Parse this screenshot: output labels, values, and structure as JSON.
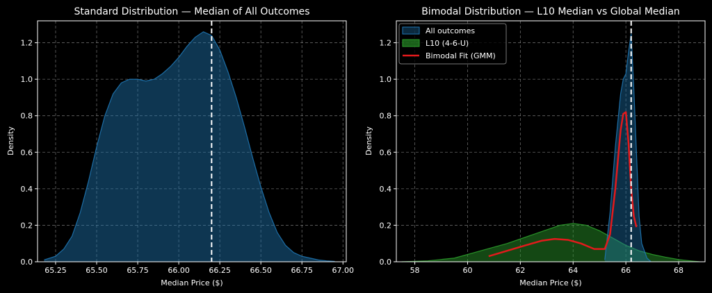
{
  "chart_data": [
    {
      "type": "area",
      "title": "Standard Distribution — Median of All Outcomes",
      "xlabel": "Median Price ($)",
      "ylabel": "Density",
      "xlim": [
        65.14,
        67.02
      ],
      "ylim": [
        0,
        1.32
      ],
      "xticks": [
        65.25,
        65.5,
        65.75,
        66.0,
        66.25,
        66.5,
        66.75,
        67.0
      ],
      "xtick_labels": [
        "65.25",
        "65.50",
        "65.75",
        "66.00",
        "66.25",
        "66.50",
        "66.75",
        "67.00"
      ],
      "yticks": [
        0,
        0.2,
        0.4,
        0.6,
        0.8,
        1.0,
        1.2
      ],
      "ytick_labels": [
        "0.0",
        "0.2",
        "0.4",
        "0.6",
        "0.8",
        "1.0",
        "1.2"
      ],
      "grid": true,
      "vline": {
        "x": 66.2,
        "style": "dashed",
        "color": "#ffffff"
      },
      "series": [
        {
          "name": "All outcomes",
          "color": "#1f77b4",
          "x": [
            65.18,
            65.25,
            65.3,
            65.35,
            65.4,
            65.45,
            65.5,
            65.55,
            65.6,
            65.65,
            65.7,
            65.75,
            65.8,
            65.85,
            65.9,
            65.95,
            66.0,
            66.05,
            66.1,
            66.15,
            66.2,
            66.25,
            66.3,
            66.35,
            66.4,
            66.45,
            66.5,
            66.55,
            66.6,
            66.65,
            66.7,
            66.75,
            66.8,
            66.85,
            66.9,
            66.95
          ],
          "y": [
            0.01,
            0.03,
            0.07,
            0.14,
            0.27,
            0.44,
            0.63,
            0.8,
            0.92,
            0.98,
            1.0,
            1.0,
            0.99,
            1.0,
            1.03,
            1.07,
            1.12,
            1.18,
            1.23,
            1.26,
            1.24,
            1.16,
            1.04,
            0.9,
            0.74,
            0.57,
            0.41,
            0.27,
            0.16,
            0.09,
            0.05,
            0.03,
            0.02,
            0.01,
            0.005,
            0.002
          ]
        }
      ]
    },
    {
      "type": "area",
      "title": "Bimodal Distribution — L10 Median vs Global Median",
      "xlabel": "Median Price ($)",
      "ylabel": "Density",
      "xlim": [
        57.3,
        69.0
      ],
      "ylim": [
        0,
        1.32
      ],
      "xticks": [
        58,
        60,
        62,
        64,
        66,
        68
      ],
      "xtick_labels": [
        "58",
        "60",
        "62",
        "64",
        "66",
        "68"
      ],
      "yticks": [
        0,
        0.2,
        0.4,
        0.6,
        0.8,
        1.0,
        1.2
      ],
      "ytick_labels": [
        "0.0",
        "0.2",
        "0.4",
        "0.6",
        "0.8",
        "1.0",
        "1.2"
      ],
      "grid": true,
      "legend_position": "top-left",
      "vline": {
        "x": 66.2,
        "style": "dashed",
        "color": "#ffffff"
      },
      "series": [
        {
          "name": "All outcomes",
          "kind": "area",
          "color": "#1f77b4",
          "x": [
            65.2,
            65.4,
            65.6,
            65.8,
            65.9,
            66.0,
            66.1,
            66.2,
            66.3,
            66.4,
            66.5,
            66.6,
            66.8,
            66.95
          ],
          "y": [
            0.01,
            0.27,
            0.63,
            0.92,
            1.0,
            1.03,
            1.15,
            1.25,
            0.95,
            0.6,
            0.25,
            0.1,
            0.02,
            0.0
          ]
        },
        {
          "name": "L10 (4-6-U)",
          "kind": "area",
          "color": "#2ca02c",
          "x": [
            57.5,
            58.5,
            59.5,
            60.5,
            61.5,
            62.5,
            63.5,
            64.0,
            64.5,
            65.0,
            65.5,
            66.0,
            66.5,
            67.0,
            67.5,
            68.0,
            68.5,
            68.8
          ],
          "y": [
            0.0,
            0.005,
            0.02,
            0.06,
            0.1,
            0.15,
            0.2,
            0.21,
            0.2,
            0.17,
            0.13,
            0.09,
            0.06,
            0.04,
            0.025,
            0.012,
            0.004,
            0.0
          ]
        },
        {
          "name": "Bimodal Fit (GMM)",
          "kind": "line",
          "color": "#e31a1c",
          "x": [
            60.8,
            61.5,
            62.2,
            62.8,
            63.3,
            63.8,
            64.3,
            64.8,
            65.2,
            65.4,
            65.6,
            65.8,
            65.9,
            66.0,
            66.1,
            66.2,
            66.3,
            66.4
          ],
          "y": [
            0.03,
            0.06,
            0.09,
            0.115,
            0.125,
            0.12,
            0.1,
            0.07,
            0.07,
            0.15,
            0.4,
            0.72,
            0.81,
            0.82,
            0.65,
            0.4,
            0.25,
            0.19
          ]
        }
      ]
    }
  ]
}
